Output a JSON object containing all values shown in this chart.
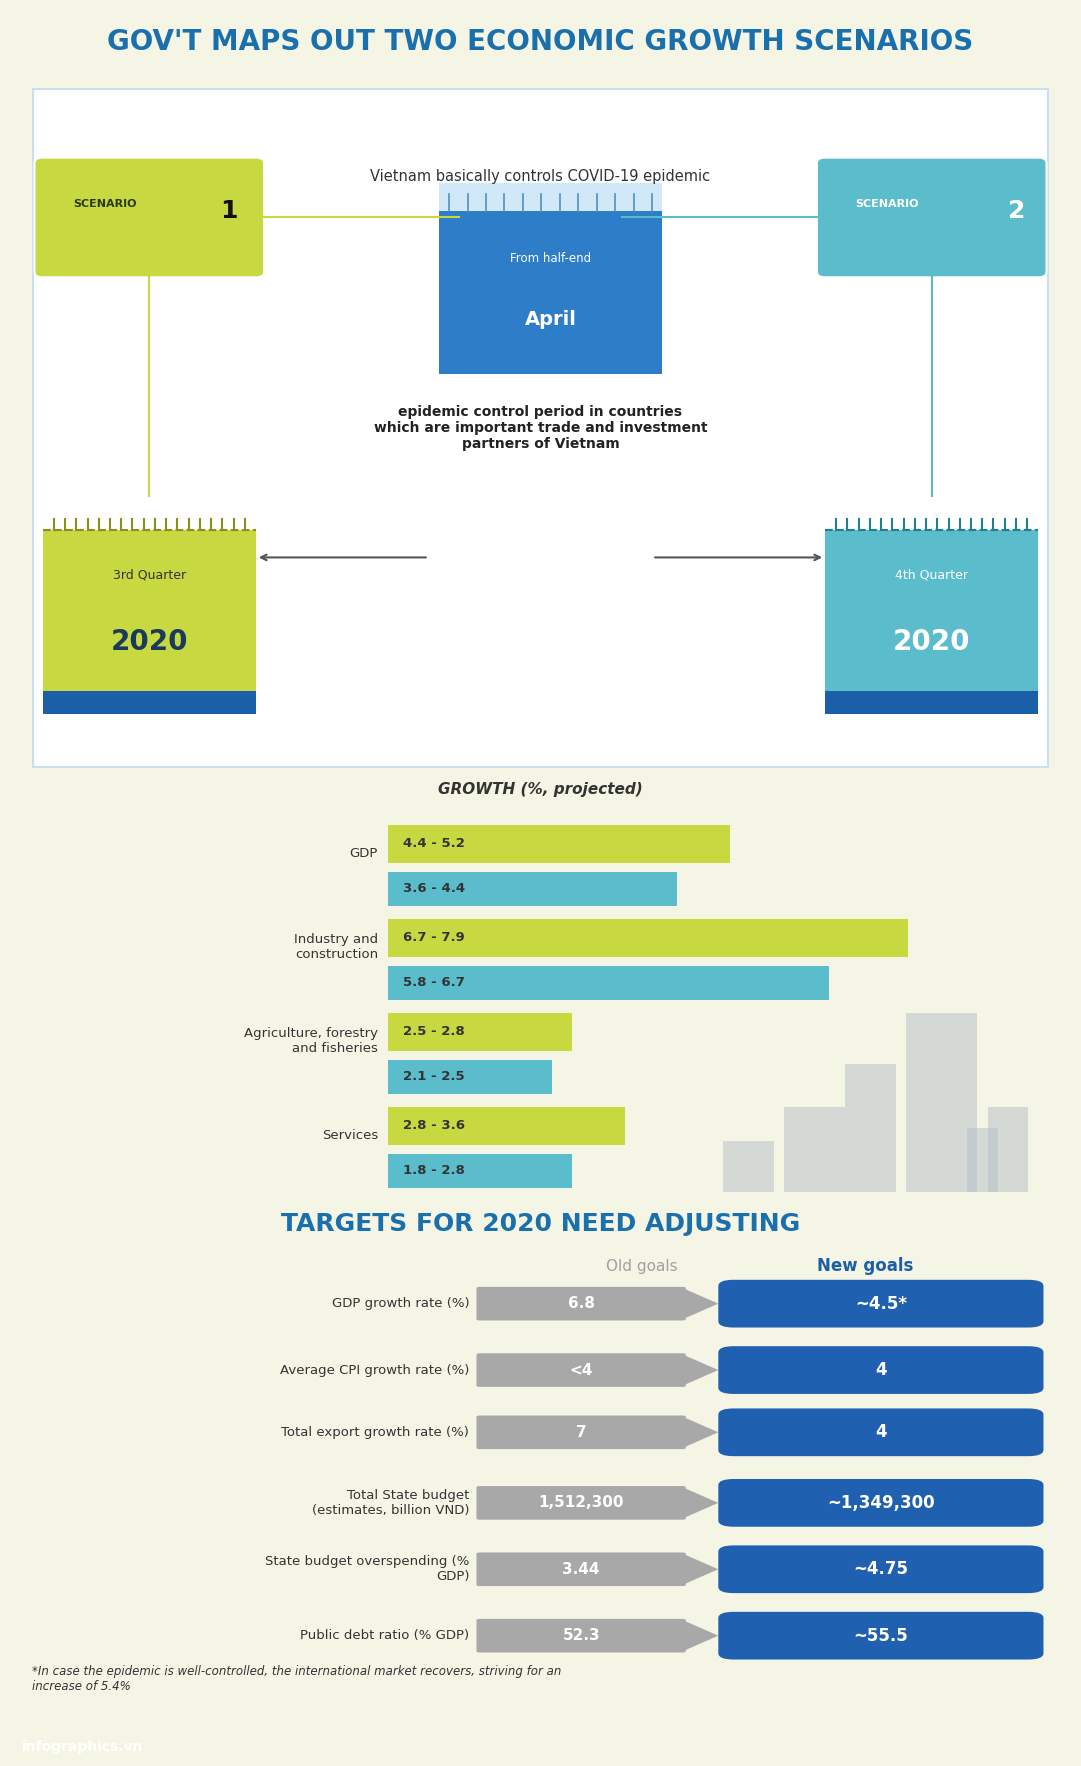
{
  "title": "GOV'T MAPS OUT TWO ECONOMIC GROWTH SCENARIOS",
  "bg_color": "#f5f5e6",
  "section1_bg": "#ffffff",
  "title_color": "#1a6fad",
  "yellow_green": "#c8d840",
  "teal": "#5bbccc",
  "dark_blue": "#1a5fa8",
  "mid_blue": "#2d7dc8",
  "covid_text": "Vietnam basically controls COVID-19 epidemic",
  "from_half": "From half-end",
  "april": "April",
  "quarter1_label": "3rd Quarter",
  "quarter1_year": "2020",
  "quarter2_label": "4th Quarter",
  "quarter2_year": "2020",
  "epidemic_text": "epidemic control period in countries\nwhich are important trade and investment\npartners of Vietnam",
  "growth_title": "GROWTH (%, projected)",
  "growth_categories": [
    "GDP",
    "Industry and\nconstruction",
    "Agriculture, forestry\nand fisheries",
    "Services"
  ],
  "growth_s1_vals": [
    5.2,
    7.9,
    2.8,
    3.6
  ],
  "growth_s2_vals": [
    4.4,
    6.7,
    2.5,
    2.8
  ],
  "growth_labels_s1": [
    "4.4 - 5.2",
    "6.7 - 7.9",
    "2.5 - 2.8",
    "2.8 - 3.6"
  ],
  "growth_labels_s2": [
    "3.6 - 4.4",
    "5.8 - 6.7",
    "2.1 - 2.5",
    "1.8 - 2.8"
  ],
  "bar_max": 8.5,
  "section2_title": "TARGETS FOR 2020 NEED ADJUSTING",
  "col_old": "Old goals",
  "col_new": "New goals",
  "target_labels": [
    "GDP growth rate (%)",
    "Average CPI growth rate (%)",
    "Total export growth rate (%)",
    "Total State budget\n(estimates, billion VND)",
    "State budget overspending (%\nGDP)",
    "Public debt ratio (% GDP)"
  ],
  "old_goals": [
    "6.8",
    "<4",
    "7",
    "1,512,300",
    "3.44",
    "52.3"
  ],
  "new_goals": [
    "~4.5*",
    "4",
    "4",
    "~1,349,300",
    "~4.75",
    "~55.5"
  ],
  "gray_color": "#a8a8a8",
  "blue_pill": "#2060b0",
  "footnote": "*In case the epidemic is well-controlled, the international market recovers, striving for an\nincrease of 5.4%",
  "footer_left": "infographics.vn",
  "footer_bg": "#2060b0"
}
